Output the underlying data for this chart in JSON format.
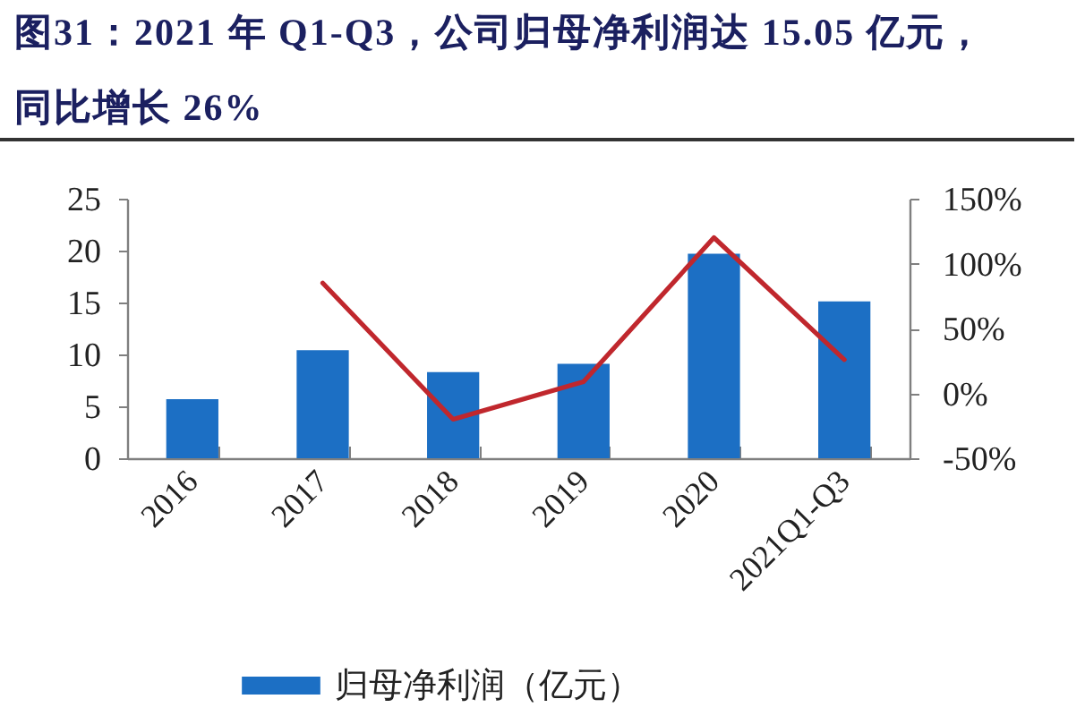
{
  "chart_data": {
    "type": "bar",
    "title": "图31：2021 年 Q1-Q3，公司归母净利润达 15.05 亿元，同比增长 26%",
    "categories": [
      "2016",
      "2017",
      "2018",
      "2019",
      "2020",
      "2021Q1-Q3"
    ],
    "series": [
      {
        "name": "归母净利润（亿元）",
        "color": "#1c6fc4",
        "values": [
          5.7,
          10.4,
          8.3,
          9.1,
          19.7,
          15.1
        ]
      },
      {
        "type": "line",
        "axis": "y2",
        "color": "#c0272d",
        "values": [
          null,
          85,
          -20,
          9,
          120,
          26
        ]
      }
    ],
    "ylim": [
      0,
      25
    ],
    "yticks": [
      0,
      5,
      10,
      15,
      20,
      25
    ],
    "y2lim": [
      -50,
      150
    ],
    "y2ticks": [
      {
        "value": -50,
        "label": "-50%"
      },
      {
        "value": 0,
        "label": "0%"
      },
      {
        "value": 50,
        "label": "50%"
      },
      {
        "value": 100,
        "label": "100%"
      },
      {
        "value": 150,
        "label": "150%"
      }
    ],
    "grid": false,
    "legend": "bottom"
  }
}
